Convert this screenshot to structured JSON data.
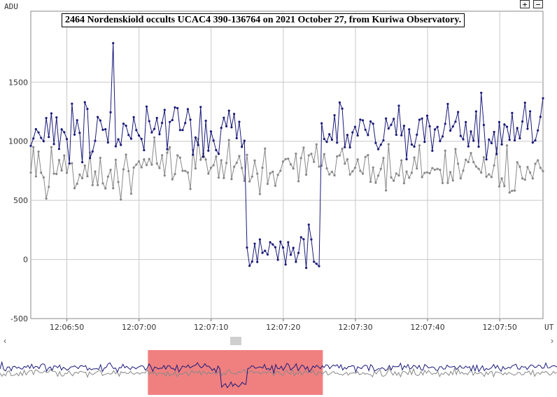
{
  "controls": {
    "zoom_in": "+",
    "zoom_out": "−",
    "scroll_left": "‹",
    "scroll_right": "›"
  },
  "colors": {
    "target_series": "#1a1a7a",
    "comparison_series": "#888888",
    "grid": "#c8c8c8",
    "overview_selection": "#f08080"
  },
  "chart_data": {
    "type": "line",
    "title": "2464 Nordenskiold occults UCAC4 390-136764 on 2021 October 27, from Kuriwa Observatory.",
    "ylabel": "ADU",
    "xlabel": "UT",
    "x_start": "12:06:45",
    "x_end": "12:07:56",
    "ylim": [
      -500,
      2100
    ],
    "yticks": [
      -500,
      0,
      500,
      1000,
      1500
    ],
    "xtick_labels": [
      "12:06:50",
      "12:07:00",
      "12:07:10",
      "12:07:20",
      "12:07:30",
      "12:07:40",
      "12:07:50"
    ],
    "grid": true,
    "event_start": "12:07:14.7",
    "event_end": "12:07:25.3",
    "event_level_adu": 70,
    "series": [
      {
        "color": "#1a1a7a",
        "baseline_adu": 1100,
        "peak_adu": 1830
      },
      {
        "color": "#888888",
        "baseline_adu": 770
      }
    ],
    "overview_selection": [
      "12:06:45",
      "12:07:56"
    ]
  }
}
